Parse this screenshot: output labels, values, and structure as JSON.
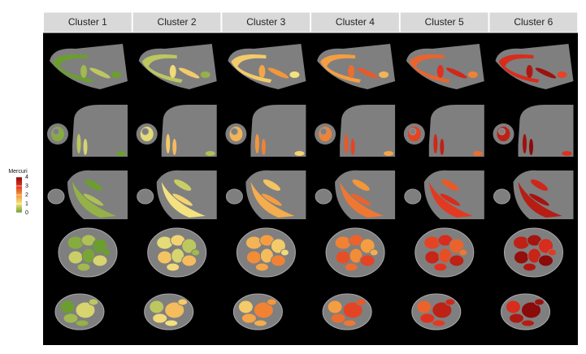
{
  "panels": {
    "headers": [
      "Cluster 1",
      "Cluster 2",
      "Cluster 3",
      "Cluster 4",
      "Cluster 5",
      "Cluster 6"
    ]
  },
  "legend": {
    "title": "Mercuri",
    "lim": [
      0,
      4
    ],
    "ticks": [
      0,
      1,
      2,
      3,
      4
    ]
  }
}
